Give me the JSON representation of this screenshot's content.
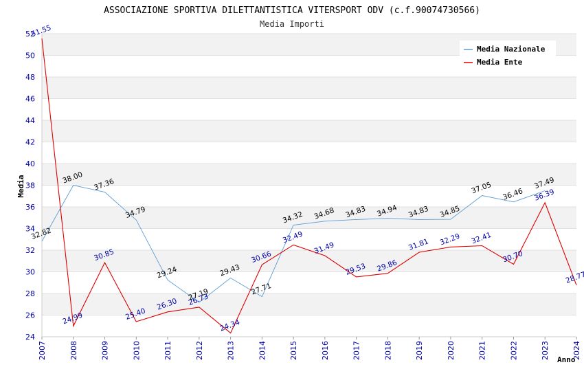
{
  "chart_data": {
    "type": "line",
    "title": "ASSOCIAZIONE SPORTIVA DILETTANTISTICA VITERSPORT ODV (c.f.90074730566)",
    "subtitle": "Media Importi",
    "xlabel": "Anno",
    "ylabel": "Media",
    "x": [
      "2007",
      "2008",
      "2009",
      "2010",
      "2011",
      "2012",
      "2013",
      "2014",
      "2015",
      "2016",
      "2017",
      "2018",
      "2019",
      "2020",
      "2021",
      "2022",
      "2023",
      "2024"
    ],
    "ylim": [
      24,
      52
    ],
    "yticks": [
      "24",
      "26",
      "28",
      "30",
      "32",
      "34",
      "36",
      "38",
      "40",
      "42",
      "44",
      "46",
      "48",
      "50",
      "52"
    ],
    "grid": true,
    "legend_position": "top-right",
    "series": [
      {
        "name": "Media Nazionale",
        "color": "#5b9bd5",
        "values": [
          32.82,
          38.0,
          37.36,
          34.79,
          29.24,
          27.19,
          29.43,
          27.71,
          34.32,
          34.68,
          34.83,
          34.94,
          34.83,
          34.85,
          37.05,
          36.46,
          37.49,
          null
        ],
        "labels": [
          "32.82",
          "38.00",
          "37.36",
          "34.79",
          "29.24",
          "27.19",
          "29.43",
          "27.71",
          "34.32",
          "34.68",
          "34.83",
          "34.94",
          "34.83",
          "34.85",
          "37.05",
          "36.46",
          "37.49",
          null
        ]
      },
      {
        "name": "Media Ente",
        "color": "#dd0000",
        "values": [
          51.55,
          24.99,
          30.85,
          25.4,
          26.3,
          26.73,
          24.34,
          30.66,
          32.49,
          31.49,
          29.53,
          29.86,
          31.81,
          32.29,
          32.41,
          30.7,
          36.39,
          28.77
        ],
        "labels": [
          "51.55",
          "24.99",
          "30.85",
          "25.40",
          "26.30",
          "26.73",
          "24.34",
          "30.66",
          "32.49",
          "31.49",
          "29.53",
          "29.86",
          "31.81",
          "32.29",
          "32.41",
          "30.70",
          "36.39",
          "28.77"
        ]
      }
    ]
  }
}
